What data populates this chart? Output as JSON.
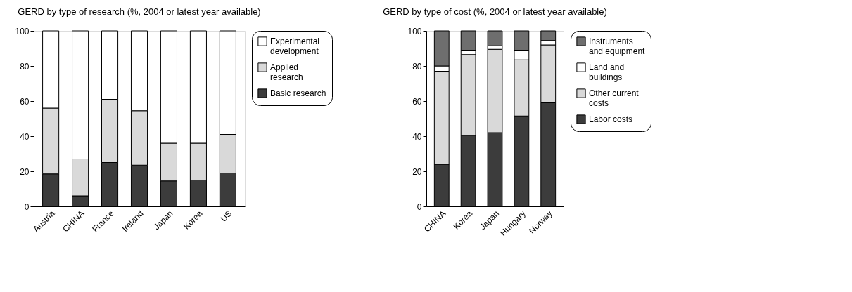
{
  "chart_data": [
    {
      "type": "bar",
      "title": "GERD by type of research (%, 2004 or latest year available)",
      "stacked": true,
      "categories": [
        "Austria",
        "CHINA",
        "France",
        "Ireland",
        "Japan",
        "Korea",
        "US"
      ],
      "series": [
        {
          "name": "Basic research",
          "color": "#3c3c3c",
          "values": [
            18.5,
            6,
            25,
            23.5,
            14.5,
            15,
            19
          ]
        },
        {
          "name": "Applied research",
          "color": "#d9d9d9",
          "values": [
            37.5,
            21,
            36,
            31,
            21.5,
            21,
            22
          ]
        },
        {
          "name": "Experimental development",
          "color": "#ffffff",
          "values": [
            44,
            73,
            39,
            45.5,
            64,
            64,
            59
          ]
        }
      ],
      "ylim": [
        0,
        100
      ],
      "yticks": [
        0,
        20,
        40,
        60,
        80,
        100
      ],
      "grid": false,
      "legend": "right"
    },
    {
      "type": "bar",
      "title": "GERD by type of cost (%, 2004 or latest year available)",
      "stacked": true,
      "categories": [
        "CHINA",
        "Korea",
        "Japan",
        "Hungary",
        "Norway"
      ],
      "series": [
        {
          "name": "Labor costs",
          "color": "#3c3c3c",
          "values": [
            24,
            40.5,
            42,
            51.5,
            59
          ]
        },
        {
          "name": "Other current costs",
          "color": "#d9d9d9",
          "values": [
            53,
            46,
            47.5,
            32,
            33
          ]
        },
        {
          "name": "Land and buildings",
          "color": "#ffffff",
          "values": [
            3,
            2.5,
            2,
            5.5,
            2.5
          ]
        },
        {
          "name": "Instruments and equipment",
          "color": "#6e6e6e",
          "values": [
            20,
            11,
            8.5,
            11,
            5.5
          ]
        }
      ],
      "ylim": [
        0,
        100
      ],
      "yticks": [
        0,
        20,
        40,
        60,
        80,
        100
      ],
      "grid": false,
      "legend": "right"
    }
  ]
}
